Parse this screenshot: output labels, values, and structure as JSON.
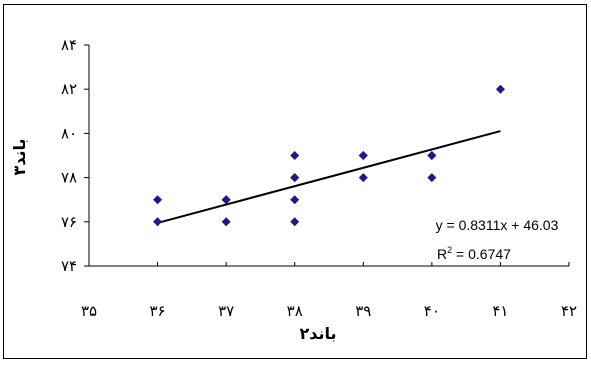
{
  "chart_data": {
    "type": "scatter",
    "xlabel": "باند۲",
    "ylabel": "باند۳",
    "xlim": [
      35,
      42
    ],
    "ylim": [
      74,
      84
    ],
    "x_ticks": [
      {
        "value": 35,
        "label": "۳۵"
      },
      {
        "value": 36,
        "label": "۳۶"
      },
      {
        "value": 37,
        "label": "۳۷"
      },
      {
        "value": 38,
        "label": "۳۸"
      },
      {
        "value": 39,
        "label": "۳۹"
      },
      {
        "value": 40,
        "label": "۴۰"
      },
      {
        "value": 41,
        "label": "۴۱"
      },
      {
        "value": 42,
        "label": "۴۲"
      }
    ],
    "y_ticks": [
      {
        "value": 74,
        "label": "۷۴"
      },
      {
        "value": 76,
        "label": "۷۶"
      },
      {
        "value": 78,
        "label": "۷۸"
      },
      {
        "value": 80,
        "label": "۸۰"
      },
      {
        "value": 82,
        "label": "۸۲"
      },
      {
        "value": 84,
        "label": "۸۴"
      }
    ],
    "points": [
      {
        "x": 36,
        "y": 76
      },
      {
        "x": 36,
        "y": 77
      },
      {
        "x": 37,
        "y": 76
      },
      {
        "x": 37,
        "y": 77
      },
      {
        "x": 37,
        "y": 77
      },
      {
        "x": 38,
        "y": 76
      },
      {
        "x": 38,
        "y": 77
      },
      {
        "x": 38,
        "y": 78
      },
      {
        "x": 38,
        "y": 78
      },
      {
        "x": 38,
        "y": 79
      },
      {
        "x": 39,
        "y": 78
      },
      {
        "x": 39,
        "y": 79
      },
      {
        "x": 39,
        "y": 79
      },
      {
        "x": 40,
        "y": 78
      },
      {
        "x": 40,
        "y": 79
      },
      {
        "x": 40,
        "y": 79
      },
      {
        "x": 41,
        "y": 82
      }
    ],
    "trendline": {
      "slope": 0.8311,
      "intercept": 46.03,
      "x_start": 36,
      "x_end": 41
    },
    "equation_label": "y = 0.8311x + 46.03",
    "r2_label": "R",
    "r2_sup": "2",
    "r2_value": " = 0.6747",
    "marker_color": "#1a1a8c",
    "line_color": "#000000",
    "grid": false,
    "legend": "none"
  }
}
